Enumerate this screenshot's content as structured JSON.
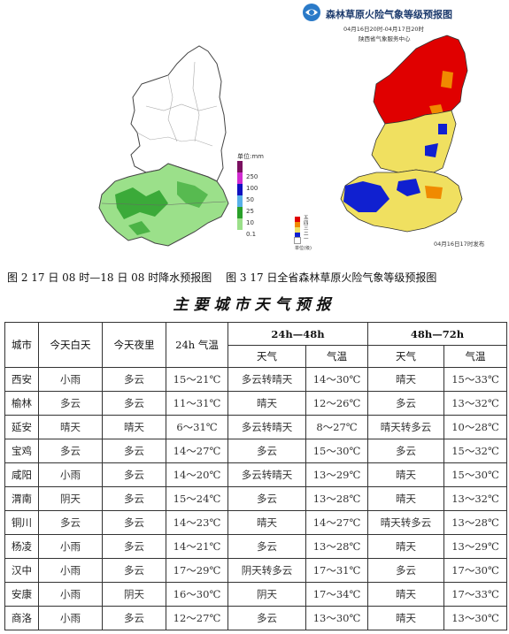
{
  "precip_map": {
    "legend_title": "单位:mm",
    "legend_ticks": [
      "250",
      "100",
      "50",
      "25",
      "10",
      "0.1"
    ],
    "legend_colors": [
      "#7a1060",
      "#d02ad0",
      "#1010c0",
      "#58b0e8",
      "#2aa02a",
      "#9be08a"
    ]
  },
  "fire_map": {
    "title": "森林草原火险气象等级预报图",
    "period": "04月16日20时-04月17日20时",
    "org": "陕西省气象服务中心",
    "issued": "04月16日17时发布",
    "legend_title": "单位(级)",
    "legend_ticks": [
      "五",
      "四",
      "三",
      "二",
      "一"
    ],
    "legend_colors": [
      "#e00000",
      "#f08a00",
      "#f0e060",
      "#1020d0",
      "#ffffff"
    ]
  },
  "captions": {
    "fig2": "图 2 17 日 08 时—18 日 08 时降水预报图",
    "fig3": "图 3 17 日全省森林草原火险气象等级预报图"
  },
  "table_title": "主要城市天气预报",
  "table": {
    "headers": {
      "city": "城市",
      "today_day": "今天白天",
      "today_night": "今天夜里",
      "temp24": "24h 气温",
      "group48": "24h—48h",
      "group72": "48h—72h",
      "weather": "天气",
      "temp": "气温"
    },
    "rows": [
      {
        "city": "西安",
        "day": "小雨",
        "night": "多云",
        "t24": "15～21℃",
        "w48": "多云转晴天",
        "t48": "14～30℃",
        "w72": "晴天",
        "t72": "15～33℃"
      },
      {
        "city": "榆林",
        "day": "多云",
        "night": "多云",
        "t24": "11～31℃",
        "w48": "晴天",
        "t48": "12～26℃",
        "w72": "多云",
        "t72": "13～32℃"
      },
      {
        "city": "延安",
        "day": "晴天",
        "night": "晴天",
        "t24": "6～31℃",
        "w48": "多云转晴天",
        "t48": "8～27℃",
        "w72": "晴天转多云",
        "t72": "10～28℃"
      },
      {
        "city": "宝鸡",
        "day": "多云",
        "night": "多云",
        "t24": "14～27℃",
        "w48": "多云",
        "t48": "15～30℃",
        "w72": "多云",
        "t72": "15～32℃"
      },
      {
        "city": "咸阳",
        "day": "小雨",
        "night": "多云",
        "t24": "14～20℃",
        "w48": "多云转晴天",
        "t48": "13～29℃",
        "w72": "晴天",
        "t72": "15～30℃"
      },
      {
        "city": "渭南",
        "day": "阴天",
        "night": "多云",
        "t24": "15～24℃",
        "w48": "多云",
        "t48": "13～28℃",
        "w72": "晴天",
        "t72": "13～32℃"
      },
      {
        "city": "铜川",
        "day": "多云",
        "night": "多云",
        "t24": "14～23℃",
        "w48": "晴天",
        "t48": "14～27℃",
        "w72": "晴天转多云",
        "t72": "13～28℃"
      },
      {
        "city": "杨凌",
        "day": "小雨",
        "night": "多云",
        "t24": "14～21℃",
        "w48": "多云",
        "t48": "13～28℃",
        "w72": "晴天",
        "t72": "13～29℃"
      },
      {
        "city": "汉中",
        "day": "小雨",
        "night": "多云",
        "t24": "17～29℃",
        "w48": "阴天转多云",
        "t48": "17～31℃",
        "w72": "多云",
        "t72": "17～30℃"
      },
      {
        "city": "安康",
        "day": "小雨",
        "night": "阴天",
        "t24": "16～30℃",
        "w48": "阴天",
        "t48": "17～34℃",
        "w72": "晴天",
        "t72": "17～33℃"
      },
      {
        "city": "商洛",
        "day": "小雨",
        "night": "多云",
        "t24": "12～27℃",
        "w48": "多云",
        "t48": "13～30℃",
        "w72": "晴天",
        "t72": "13～30℃"
      }
    ]
  }
}
